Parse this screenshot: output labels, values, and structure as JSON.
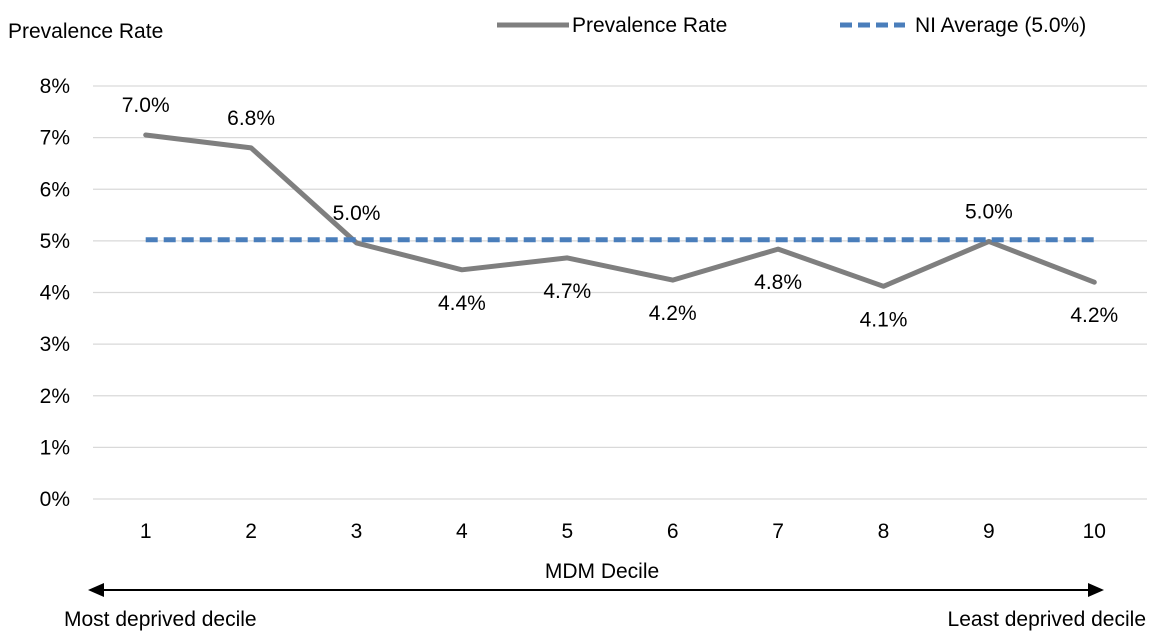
{
  "chart_data": {
    "type": "line",
    "ylabel": "Prevalence Rate",
    "xlabel": "MDM Decile",
    "categories": [
      "1",
      "2",
      "3",
      "4",
      "5",
      "6",
      "7",
      "8",
      "9",
      "10"
    ],
    "ylim": [
      0,
      8
    ],
    "yticks": [
      "0%",
      "1%",
      "2%",
      "3%",
      "4%",
      "5%",
      "6%",
      "7%",
      "8%"
    ],
    "grid": true,
    "legend_position": "top-right",
    "series": [
      {
        "name": "Prevalence Rate",
        "values": [
          7.05,
          6.8,
          4.96,
          4.44,
          4.67,
          4.24,
          4.84,
          4.12,
          4.99,
          4.2
        ],
        "labels": [
          "7.0%",
          "6.8%",
          "5.0%",
          "4.4%",
          "4.7%",
          "4.2%",
          "4.8%",
          "4.1%",
          "5.0%",
          "4.2%"
        ],
        "color": "#7f7f7f",
        "style": "solid"
      },
      {
        "name": "NI Average (5.0%)",
        "values": [
          5.02,
          5.02,
          5.02,
          5.02,
          5.02,
          5.02,
          5.02,
          5.02,
          5.02,
          5.02
        ],
        "color": "#4a7ebb",
        "style": "dashed"
      }
    ],
    "axis_arrow": {
      "left_label": "Most deprived decile",
      "right_label": "Least deprived decile"
    }
  }
}
